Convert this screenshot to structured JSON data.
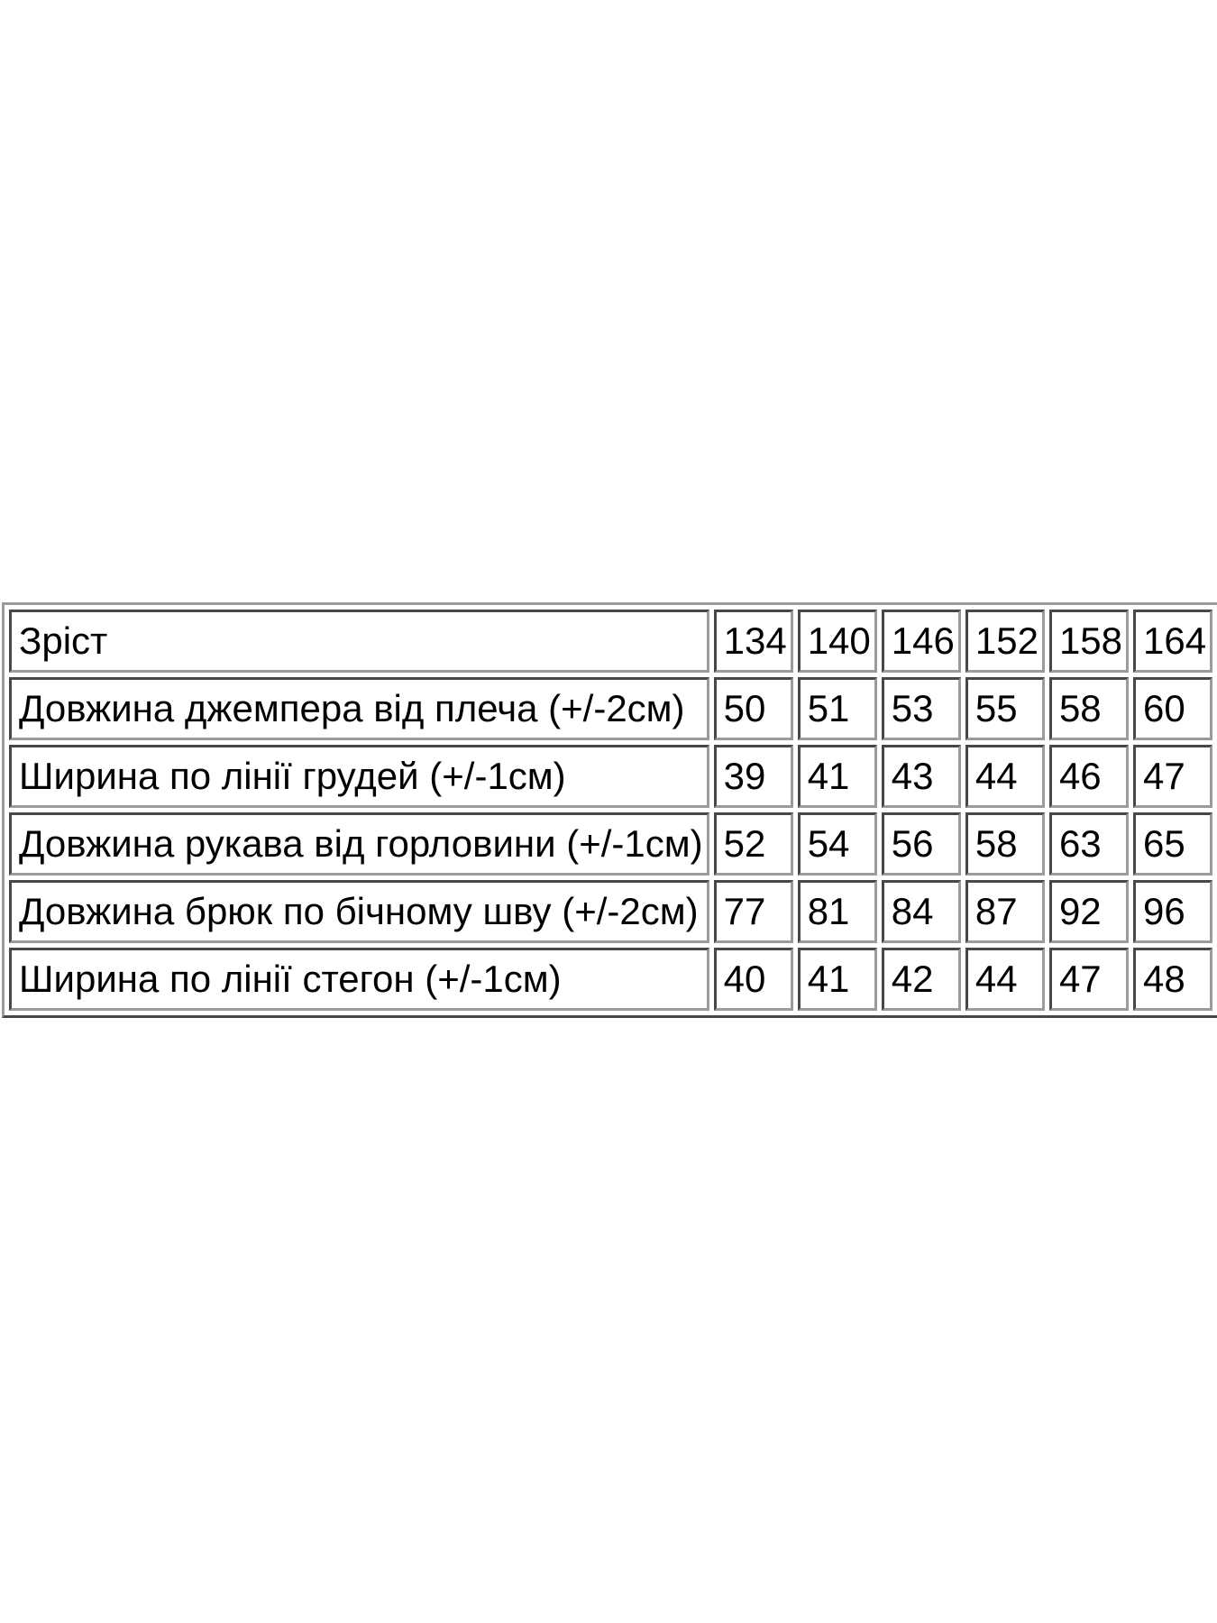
{
  "colors": {
    "page_background": "#ffffff",
    "cell_background": "#ffffff",
    "border_gray": "#9b9b9b",
    "text": "#000000"
  },
  "chart_data": {
    "type": "table",
    "header_row": {
      "label": "Зріст",
      "values": [
        "134",
        "140",
        "146",
        "152",
        "158",
        "164"
      ]
    },
    "rows": [
      {
        "label": "Довжина джемпера від плеча (+/-2см)",
        "values": [
          "50",
          "51",
          "53",
          "55",
          "58",
          "60"
        ]
      },
      {
        "label": "Ширина по лінії грудей (+/-1см)",
        "values": [
          "39",
          "41",
          "43",
          "44",
          "46",
          "47"
        ]
      },
      {
        "label": "Довжина рукава від горловини (+/-1см)",
        "values": [
          "52",
          "54",
          "56",
          "58",
          "63",
          "65"
        ]
      },
      {
        "label": "Довжина брюк по бічному шву (+/-2см)",
        "values": [
          "77",
          "81",
          "84",
          "87",
          "92",
          "96"
        ]
      },
      {
        "label": "Ширина по лінії стегон (+/-1см)",
        "values": [
          "40",
          "41",
          "42",
          "44",
          "47",
          "48"
        ]
      }
    ],
    "layout": {
      "first_column_is_label": true,
      "grid": true,
      "columns": 7,
      "rows_total": 6
    }
  }
}
